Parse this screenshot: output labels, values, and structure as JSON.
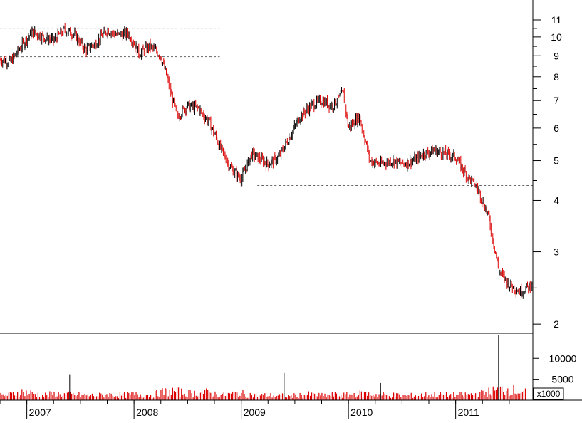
{
  "chart_data": [
    {
      "type": "candlestick",
      "panel": "price",
      "title": "",
      "ylabel": "",
      "yscale": "log",
      "ylim": [
        1.9,
        12.3
      ],
      "y_ticks": [
        {
          "value": 11,
          "label": "11"
        },
        {
          "value": 10,
          "label": "10"
        },
        {
          "value": 9,
          "label": "9"
        },
        {
          "value": 8,
          "label": "8"
        },
        {
          "value": 7,
          "label": "7"
        },
        {
          "value": 6,
          "label": "6"
        },
        {
          "value": 5,
          "label": "5"
        },
        {
          "value": 4,
          "label": "4"
        },
        {
          "value": 3,
          "label": "3"
        },
        {
          "value": 2,
          "label": "2"
        }
      ],
      "x_ticks": [
        {
          "value": 2007,
          "label": "2007"
        },
        {
          "value": 2008,
          "label": "2008"
        },
        {
          "value": 2009,
          "label": "2009"
        },
        {
          "value": 2010,
          "label": "2010"
        },
        {
          "value": 2011,
          "label": "2011"
        }
      ],
      "xlim": [
        2006.75,
        2011.72
      ],
      "grid": false,
      "colors": {
        "up": "#000000",
        "down": "#dd0000",
        "reference": "#666666"
      },
      "reference_lines": [
        {
          "value": 10.5,
          "x_start": 2006.75,
          "x_end": 2008.8
        },
        {
          "value": 8.95,
          "x_start": 2006.75,
          "x_end": 2008.8
        },
        {
          "value": 4.35,
          "x_start": 2009.15,
          "x_end": 2011.72
        }
      ],
      "x": [
        2006.75,
        2006.85,
        2006.95,
        2007.05,
        2007.15,
        2007.25,
        2007.35,
        2007.45,
        2007.55,
        2007.65,
        2007.75,
        2007.85,
        2007.95,
        2008.05,
        2008.15,
        2008.25,
        2008.35,
        2008.4,
        2008.5,
        2008.6,
        2008.7,
        2008.8,
        2008.9,
        2009.0,
        2009.1,
        2009.15,
        2009.25,
        2009.35,
        2009.45,
        2009.55,
        2009.65,
        2009.75,
        2009.85,
        2009.95,
        2010.0,
        2010.1,
        2010.2,
        2010.3,
        2010.4,
        2010.5,
        2010.6,
        2010.7,
        2010.8,
        2010.9,
        2011.0,
        2011.1,
        2011.2,
        2011.3,
        2011.4,
        2011.5,
        2011.6,
        2011.72
      ],
      "close": [
        8.8,
        8.7,
        9.5,
        10.3,
        10.0,
        9.8,
        10.4,
        10.1,
        9.3,
        9.7,
        10.4,
        10.1,
        10.2,
        9.1,
        9.5,
        9.0,
        7.2,
        6.4,
        6.8,
        6.7,
        6.2,
        5.4,
        4.8,
        4.5,
        5.2,
        5.1,
        4.9,
        5.1,
        5.7,
        6.4,
        6.8,
        7.0,
        6.8,
        7.3,
        6.0,
        6.4,
        5.0,
        4.9,
        5.0,
        4.9,
        5.0,
        5.2,
        5.3,
        5.2,
        5.1,
        4.6,
        4.3,
        3.7,
        2.7,
        2.5,
        2.4,
        2.5
      ]
    },
    {
      "type": "bar",
      "panel": "volume",
      "title": "",
      "ylabel": "",
      "unit": "x1000",
      "ylim": [
        0,
        16000
      ],
      "y_ticks": [
        {
          "value": 10000,
          "label": "10000"
        },
        {
          "value": 5000,
          "label": "5000"
        }
      ],
      "colors": {
        "bar": "#dd0000",
        "spike": "#000000"
      },
      "x": [
        2006.75,
        2006.85,
        2006.95,
        2007.05,
        2007.15,
        2007.25,
        2007.35,
        2007.45,
        2007.55,
        2007.65,
        2007.75,
        2007.85,
        2007.95,
        2008.05,
        2008.15,
        2008.25,
        2008.35,
        2008.45,
        2008.55,
        2008.65,
        2008.75,
        2008.85,
        2008.95,
        2009.05,
        2009.15,
        2009.25,
        2009.35,
        2009.45,
        2009.55,
        2009.65,
        2009.75,
        2009.85,
        2009.95,
        2010.05,
        2010.15,
        2010.25,
        2010.35,
        2010.45,
        2010.55,
        2010.65,
        2010.75,
        2010.85,
        2010.95,
        2011.05,
        2011.15,
        2011.25,
        2011.35,
        2011.45,
        2011.55,
        2011.65
      ],
      "values": [
        1200,
        1500,
        2200,
        1800,
        1300,
        1600,
        1500,
        1400,
        1300,
        1200,
        1500,
        1300,
        1400,
        1600,
        1300,
        2000,
        2400,
        2000,
        1800,
        2100,
        1700,
        1400,
        1800,
        1600,
        1200,
        1300,
        1200,
        1100,
        1300,
        1500,
        1200,
        1400,
        1300,
        1600,
        1700,
        1500,
        1400,
        1300,
        1200,
        1300,
        1400,
        1500,
        1300,
        1400,
        1500,
        1800,
        2400,
        3000,
        2600,
        2000
      ],
      "spikes": [
        {
          "x": 2007.4,
          "value": 6200
        },
        {
          "x": 2009.4,
          "value": 6500
        },
        {
          "x": 2010.3,
          "value": 4100
        },
        {
          "x": 2011.4,
          "value": 15500
        }
      ]
    }
  ]
}
